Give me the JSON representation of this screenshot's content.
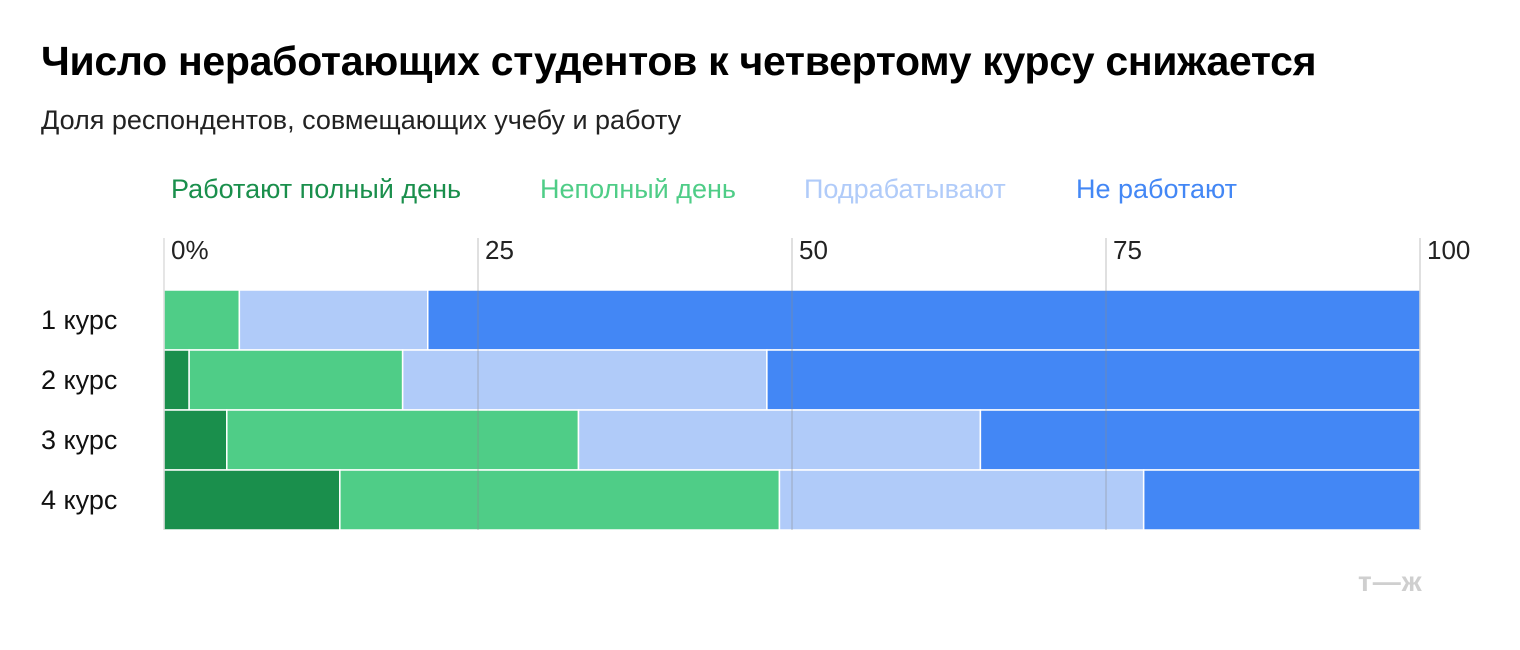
{
  "title": "Число неработающих студентов к четвертому курсу снижается",
  "subtitle": "Доля респондентов, совмещающих учебу и работу",
  "logo": "т—ж",
  "legend": [
    {
      "label": "Работают полный день",
      "color": "#1a8f4c"
    },
    {
      "label": "Неполный день",
      "color": "#4fcd87"
    },
    {
      "label": "Подрабатывают",
      "color": "#b0cbf9"
    },
    {
      "label": "Не работают",
      "color": "#4387f5"
    }
  ],
  "chart_data": {
    "type": "bar",
    "orientation": "horizontal",
    "stacked": true,
    "categories": [
      "1 курс",
      "2 курс",
      "3 курс",
      "4 курс"
    ],
    "series": [
      {
        "name": "Работают полный день",
        "color": "#1a8f4c",
        "values": [
          0,
          2,
          5,
          14
        ]
      },
      {
        "name": "Неполный день",
        "color": "#4fcd87",
        "values": [
          6,
          17,
          28,
          35
        ]
      },
      {
        "name": "Подрабатывают",
        "color": "#b0cbf9",
        "values": [
          15,
          29,
          32,
          29
        ]
      },
      {
        "name": "Не работают",
        "color": "#4387f5",
        "values": [
          79,
          52,
          35,
          22
        ]
      }
    ],
    "xlim": [
      0,
      100
    ],
    "x_ticks": [
      0,
      25,
      50,
      75,
      100
    ],
    "x_tick_labels": [
      "0%",
      "25",
      "50",
      "75",
      "100"
    ],
    "grid": true,
    "legend_position": "top"
  }
}
